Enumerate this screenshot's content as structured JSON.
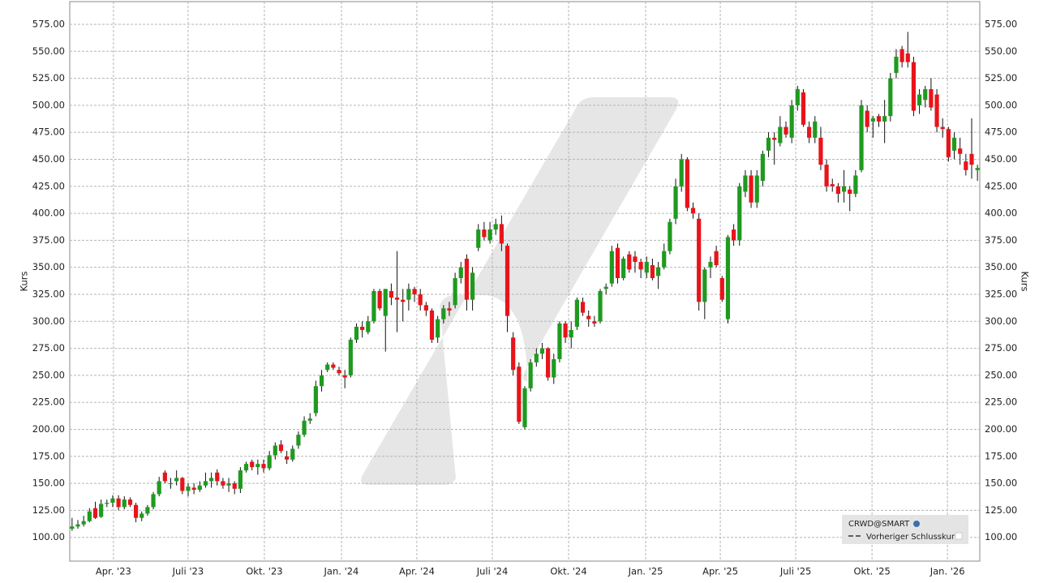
{
  "chart_data": {
    "type": "candlestick",
    "y_label": "Kurs",
    "ylim": [
      78,
      596
    ],
    "yticks": [
      {
        "value": 100,
        "label": "100.00"
      },
      {
        "value": 125,
        "label": "125.00"
      },
      {
        "value": 150,
        "label": "150.00"
      },
      {
        "value": 175,
        "label": "175.00"
      },
      {
        "value": 200,
        "label": "200.00"
      },
      {
        "value": 225,
        "label": "225.00"
      },
      {
        "value": 250,
        "label": "250.00"
      },
      {
        "value": 275,
        "label": "275.00"
      },
      {
        "value": 300,
        "label": "300.00"
      },
      {
        "value": 325,
        "label": "325.00"
      },
      {
        "value": 350,
        "label": "350.00"
      },
      {
        "value": 375,
        "label": "375.00"
      },
      {
        "value": 400,
        "label": "400.00"
      },
      {
        "value": 425,
        "label": "425.00"
      },
      {
        "value": 450,
        "label": "450.00"
      },
      {
        "value": 475,
        "label": "475.00"
      },
      {
        "value": 500,
        "label": "500.00"
      },
      {
        "value": 525,
        "label": "525.00"
      },
      {
        "value": 550,
        "label": "550.00"
      },
      {
        "value": 575,
        "label": "575.00"
      }
    ],
    "xlim": [
      -0.4,
      156.4
    ],
    "xticks": [
      {
        "value": 7.13,
        "label": "Apr. '23"
      },
      {
        "value": 19.99,
        "label": "Juli '23"
      },
      {
        "value": 33.13,
        "label": "Okt. '23"
      },
      {
        "value": 46.41,
        "label": "Jan. '24"
      },
      {
        "value": 59.41,
        "label": "Apr. '24"
      },
      {
        "value": 72.41,
        "label": "Juli '24"
      },
      {
        "value": 85.55,
        "label": "Okt. '24"
      },
      {
        "value": 98.83,
        "label": "Jan. '25"
      },
      {
        "value": 111.69,
        "label": "Apr. '25"
      },
      {
        "value": 124.69,
        "label": "Juli '25"
      },
      {
        "value": 137.83,
        "label": "Okt. '25"
      },
      {
        "value": 150.83,
        "label": "Jan. '26"
      }
    ],
    "grid": true,
    "up_color": "#1f9a1f",
    "down_color": "#e8141a",
    "legend_position": "bottom-right",
    "legend_extra": "Vorheriger Schlusskurs",
    "series": [
      {
        "name": "CRWD@SMART",
        "open": [
          108,
          110,
          112,
          115,
          127,
          119,
          131,
          132,
          136,
          128,
          135,
          130,
          118,
          122,
          128,
          140,
          160,
          150,
          152,
          155,
          143,
          146,
          144,
          148,
          152,
          160,
          152,
          148,
          150,
          145,
          162,
          170,
          165,
          168,
          164,
          176,
          186,
          175,
          172,
          185,
          195,
          208,
          215,
          240,
          255,
          260,
          255,
          250,
          250,
          283,
          295,
          290,
          300,
          328,
          305,
          328,
          322,
          320,
          320,
          330,
          325,
          315,
          310,
          285,
          302,
          312,
          315,
          340,
          358,
          320,
          368,
          385,
          375,
          385,
          390,
          370,
          285,
          258,
          202,
          238,
          262,
          270,
          275,
          248,
          265,
          298,
          285,
          295,
          318,
          305,
          300,
          300,
          330,
          335,
          368,
          340,
          362,
          360,
          355,
          345,
          352,
          342,
          350,
          365,
          395,
          425,
          450,
          405,
          395,
          318,
          350,
          365,
          340,
          302,
          385,
          375,
          420,
          435,
          410,
          430,
          458,
          470,
          465,
          480,
          470,
          500,
          512,
          480,
          470,
          470,
          445,
          427,
          425,
          420,
          422,
          418,
          440,
          495,
          485,
          490,
          485,
          490,
          530,
          552,
          548,
          540,
          500,
          505,
          515,
          510,
          480,
          478,
          458,
          460,
          448,
          455,
          440
        ],
        "high": [
          118,
          116,
          120,
          127,
          133,
          135,
          135,
          139,
          139,
          138,
          137,
          132,
          124,
          130,
          142,
          156,
          162,
          155,
          162,
          156,
          150,
          150,
          152,
          160,
          160,
          163,
          155,
          155,
          152,
          165,
          170,
          172,
          172,
          172,
          180,
          188,
          190,
          180,
          185,
          198,
          212,
          215,
          245,
          255,
          262,
          262,
          258,
          255,
          285,
          298,
          300,
          305,
          330,
          330,
          330,
          335,
          365,
          330,
          335,
          332,
          330,
          318,
          312,
          305,
          315,
          318,
          345,
          355,
          362,
          350,
          390,
          392,
          392,
          395,
          398,
          372,
          290,
          262,
          240,
          265,
          275,
          280,
          276,
          270,
          300,
          300,
          300,
          322,
          322,
          310,
          305,
          330,
          335,
          370,
          372,
          360,
          365,
          365,
          358,
          360,
          358,
          355,
          372,
          395,
          432,
          455,
          452,
          410,
          400,
          350,
          360,
          370,
          342,
          380,
          390,
          428,
          440,
          440,
          440,
          458,
          475,
          475,
          490,
          485,
          505,
          518,
          515,
          485,
          490,
          480,
          450,
          432,
          428,
          440,
          425,
          440,
          505,
          500,
          490,
          492,
          505,
          530,
          552,
          555,
          568,
          545,
          515,
          518,
          525,
          515,
          488,
          480,
          475,
          470,
          455,
          488,
          445
        ],
        "low": [
          106,
          108,
          110,
          114,
          117,
          118,
          128,
          128,
          125,
          126,
          128,
          114,
          115,
          120,
          126,
          138,
          150,
          145,
          148,
          140,
          138,
          140,
          142,
          146,
          146,
          148,
          145,
          142,
          140,
          141,
          160,
          162,
          158,
          160,
          162,
          172,
          178,
          168,
          170,
          182,
          193,
          205,
          212,
          235,
          253,
          255,
          250,
          238,
          248,
          280,
          285,
          288,
          298,
          310,
          272,
          315,
          290,
          300,
          310,
          318,
          310,
          305,
          280,
          280,
          298,
          305,
          312,
          335,
          310,
          310,
          365,
          375,
          372,
          380,
          365,
          290,
          250,
          205,
          200,
          235,
          258,
          265,
          245,
          242,
          262,
          280,
          275,
          292,
          305,
          295,
          295,
          298,
          325,
          332,
          335,
          338,
          345,
          345,
          340,
          340,
          338,
          330,
          348,
          362,
          390,
          420,
          402,
          395,
          310,
          302,
          340,
          350,
          318,
          298,
          370,
          370,
          415,
          405,
          405,
          425,
          452,
          445,
          462,
          470,
          465,
          495,
          480,
          465,
          465,
          440,
          420,
          420,
          410,
          410,
          402,
          415,
          438,
          475,
          470,
          480,
          465,
          485,
          525,
          535,
          535,
          490,
          492,
          498,
          495,
          475,
          470,
          448,
          450,
          445,
          435,
          432,
          430
        ],
        "close": [
          110,
          112,
          115,
          124,
          118,
          131,
          132,
          136,
          128,
          135,
          130,
          118,
          122,
          128,
          140,
          152,
          152,
          150,
          155,
          143,
          147,
          144,
          148,
          152,
          155,
          152,
          148,
          150,
          145,
          162,
          168,
          165,
          168,
          164,
          176,
          185,
          180,
          172,
          182,
          195,
          208,
          210,
          240,
          250,
          260,
          257,
          252,
          248,
          283,
          295,
          292,
          300,
          328,
          312,
          330,
          322,
          320,
          318,
          330,
          325,
          315,
          310,
          283,
          302,
          312,
          310,
          340,
          350,
          320,
          345,
          385,
          378,
          385,
          390,
          372,
          305,
          255,
          207,
          238,
          262,
          270,
          275,
          248,
          265,
          298,
          285,
          292,
          320,
          308,
          302,
          298,
          328,
          332,
          365,
          340,
          358,
          348,
          355,
          348,
          355,
          340,
          350,
          365,
          392,
          425,
          450,
          405,
          400,
          318,
          348,
          355,
          352,
          320,
          378,
          375,
          425,
          435,
          410,
          435,
          455,
          470,
          468,
          480,
          473,
          500,
          515,
          482,
          470,
          485,
          445,
          425,
          425,
          418,
          425,
          418,
          435,
          500,
          480,
          488,
          485,
          490,
          525,
          545,
          540,
          540,
          495,
          510,
          515,
          498,
          480,
          478,
          452,
          470,
          455,
          440,
          445,
          442
        ]
      }
    ]
  }
}
